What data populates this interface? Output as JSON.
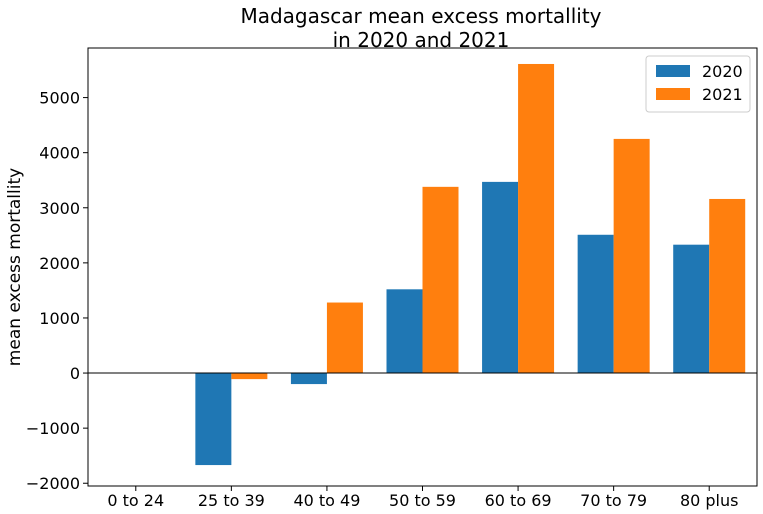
{
  "chart_data": {
    "type": "bar",
    "title": "Madagascar mean excess mortallity\nin 2020 and 2021",
    "title_lines": [
      "Madagascar mean excess mortallity",
      "in 2020 and 2021"
    ],
    "xlabel": "",
    "ylabel": "mean excess mortallity",
    "categories": [
      "0 to 24",
      "25 to 39",
      "40 to 49",
      "50 to 59",
      "60 to 69",
      "70 to 79",
      "80 plus"
    ],
    "series": [
      {
        "name": "2020",
        "color": "#1f77b4",
        "values": [
          0,
          -1670,
          -200,
          1520,
          3470,
          2510,
          2330
        ]
      },
      {
        "name": "2021",
        "color": "#ff7f0e",
        "values": [
          0,
          -110,
          1280,
          3380,
          5610,
          4250,
          3160
        ]
      }
    ],
    "ylim": [
      -2050,
      5900
    ],
    "yticks": [
      -2000,
      -1000,
      0,
      1000,
      2000,
      3000,
      4000,
      5000
    ],
    "ytick_labels": [
      "−2000",
      "−1000",
      "0",
      "1000",
      "2000",
      "3000",
      "4000",
      "5000"
    ],
    "grid": false,
    "zero_line": true,
    "legend_position": "top-right"
  }
}
